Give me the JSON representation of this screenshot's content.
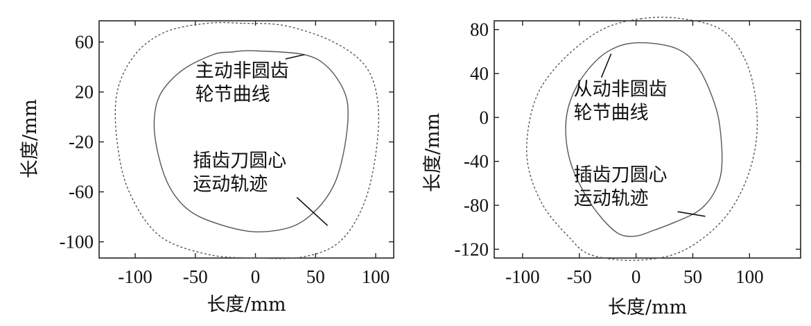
{
  "chart_data": [
    {
      "type": "line",
      "xlabel": "长度/mm",
      "ylabel": "长度/mm",
      "xlim": [
        -130,
        115
      ],
      "ylim": [
        -113,
        77
      ],
      "xticks": [
        -100,
        -50,
        0,
        50,
        100
      ],
      "yticks": [
        60,
        20,
        -20,
        -60,
        -100
      ],
      "xtick_labels": [
        "-100",
        "-50",
        "0",
        "50",
        "100"
      ],
      "ytick_labels": [
        "60",
        "20",
        "-20",
        "-60",
        "-100"
      ],
      "series": [
        {
          "line": "solid",
          "points": [
            [
              -2,
              53
            ],
            [
              40,
              50
            ],
            [
              60,
              40
            ],
            [
              74,
              20
            ],
            [
              77,
              0
            ],
            [
              73,
              -30
            ],
            [
              65,
              -55
            ],
            [
              50,
              -75
            ],
            [
              30,
              -88
            ],
            [
              0,
              -92
            ],
            [
              -30,
              -86
            ],
            [
              -55,
              -75
            ],
            [
              -72,
              -55
            ],
            [
              -82,
              -25
            ],
            [
              -84,
              0
            ],
            [
              -78,
              20
            ],
            [
              -60,
              38
            ],
            [
              -35,
              50
            ],
            [
              -20,
              52
            ],
            [
              -2,
              53
            ]
          ]
        },
        {
          "line": "dotted",
          "points": [
            [
              -10,
              75
            ],
            [
              25,
              73
            ],
            [
              65,
              60
            ],
            [
              92,
              40
            ],
            [
              102,
              10
            ],
            [
              100,
              -30
            ],
            [
              90,
              -70
            ],
            [
              70,
              -100
            ],
            [
              40,
              -112
            ],
            [
              0,
              -113
            ],
            [
              -40,
              -110
            ],
            [
              -80,
              -95
            ],
            [
              -105,
              -60
            ],
            [
              -115,
              -20
            ],
            [
              -115,
              20
            ],
            [
              -100,
              50
            ],
            [
              -75,
              68
            ],
            [
              -40,
              75
            ],
            [
              -10,
              75
            ]
          ]
        }
      ],
      "annotations": [
        {
          "lines": [
            "主动非圆齿",
            "轮节曲线"
          ],
          "x": -50,
          "y": 32,
          "leader_to": [
            41,
            50
          ]
        },
        {
          "lines": [
            "插齿刀圆心",
            "运动轨迹"
          ],
          "x": -52,
          "y": -40,
          "leader_to": [
            60,
            -87
          ]
        }
      ]
    },
    {
      "type": "line",
      "xlabel": "长度/mm",
      "ylabel": "长度/mm",
      "xlim": [
        -125,
        145
      ],
      "ylim": [
        -128,
        88
      ],
      "xticks": [
        -100,
        -50,
        0,
        50,
        100
      ],
      "yticks": [
        80,
        40,
        0,
        -40,
        -80,
        -120
      ],
      "xtick_labels": [
        "-100",
        "-50",
        "0",
        "50",
        "100"
      ],
      "ytick_labels": [
        "80",
        "40",
        "0",
        "-40",
        "-80",
        "-120"
      ],
      "series": [
        {
          "line": "solid",
          "points": [
            [
              0,
              68
            ],
            [
              -25,
              60
            ],
            [
              -45,
              40
            ],
            [
              -58,
              15
            ],
            [
              -62,
              -10
            ],
            [
              -58,
              -40
            ],
            [
              -45,
              -70
            ],
            [
              -30,
              -92
            ],
            [
              -15,
              -106
            ],
            [
              0,
              -108
            ],
            [
              15,
              -103
            ],
            [
              35,
              -95
            ],
            [
              55,
              -85
            ],
            [
              68,
              -70
            ],
            [
              75,
              -50
            ],
            [
              75,
              -20
            ],
            [
              70,
              10
            ],
            [
              55,
              45
            ],
            [
              35,
              63
            ],
            [
              0,
              68
            ]
          ]
        },
        {
          "line": "dotted",
          "points": [
            [
              5,
              90
            ],
            [
              -30,
              80
            ],
            [
              -62,
              55
            ],
            [
              -85,
              25
            ],
            [
              -95,
              -10
            ],
            [
              -95,
              -45
            ],
            [
              -82,
              -80
            ],
            [
              -60,
              -108
            ],
            [
              -40,
              -125
            ],
            [
              0,
              -130
            ],
            [
              40,
              -122
            ],
            [
              75,
              -95
            ],
            [
              96,
              -60
            ],
            [
              106,
              -20
            ],
            [
              105,
              20
            ],
            [
              95,
              55
            ],
            [
              75,
              80
            ],
            [
              40,
              90
            ],
            [
              5,
              90
            ]
          ]
        }
      ],
      "annotations": [
        {
          "lines": [
            "从动非圆齿",
            "轮节曲线"
          ],
          "x": -55,
          "y": 20,
          "leader_to": [
            -22,
            58
          ]
        },
        {
          "lines": [
            "插齿刀圆心",
            "运动轨迹"
          ],
          "x": -55,
          "y": -58,
          "leader_to": [
            61,
            -90
          ]
        }
      ]
    }
  ]
}
